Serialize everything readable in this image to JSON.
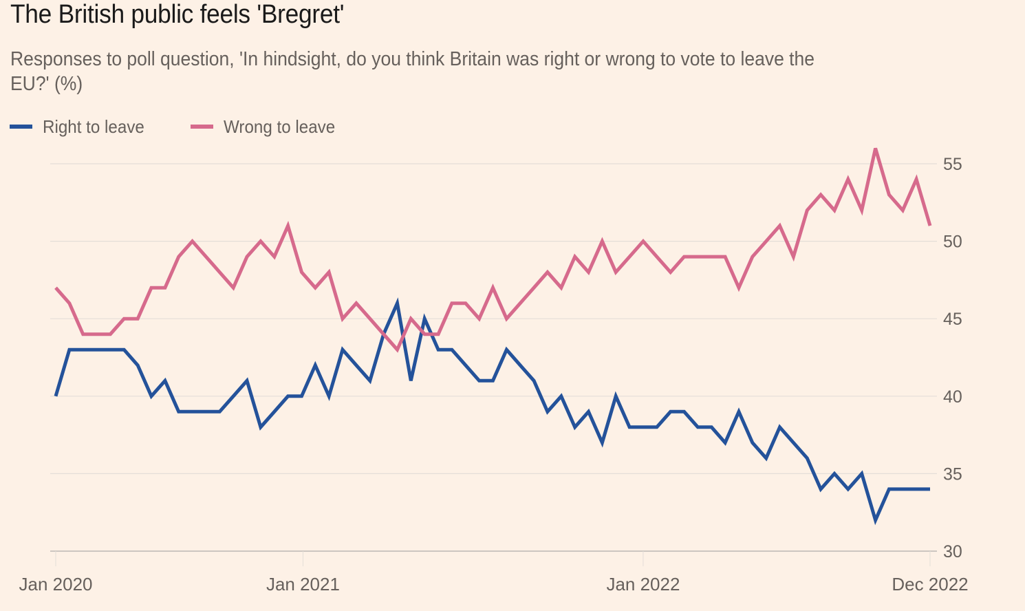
{
  "colors": {
    "background": "#FDF1E6",
    "right_to_leave": "#24529A",
    "wrong_to_leave": "#D66A8C",
    "grid": "#E4DED8",
    "axis": "#CCC6C0",
    "text_muted": "#66605C"
  },
  "chart_data": {
    "type": "line",
    "title": "The British public feels 'Bregret'",
    "subtitle": "Responses to poll question, 'In hindsight, do you think Britain was right or wrong to vote to leave the EU?' (%)",
    "xlabel": "",
    "ylabel": "",
    "ylim": [
      30,
      56
    ],
    "yticks": [
      30,
      35,
      40,
      45,
      50,
      55
    ],
    "ytick_labels": [
      "30",
      "35",
      "40",
      "45",
      "50",
      "55"
    ],
    "y_axis_side": "right",
    "grid": true,
    "legend_position": "top-left",
    "x_points": 65,
    "x_range": [
      "Jan 2020",
      "Dec 2022"
    ],
    "xticks": [
      {
        "label": "Jan 2020",
        "index": 0
      },
      {
        "label": "Jan 2021",
        "index": 18.1
      },
      {
        "label": "Jan 2022",
        "index": 43
      },
      {
        "label": "Dec 2022",
        "index": 64
      }
    ],
    "series": [
      {
        "name": "Right to leave",
        "color": "#24529A",
        "values": [
          40,
          43,
          43,
          43,
          43,
          43,
          42,
          40,
          41,
          39,
          39,
          39,
          39,
          40,
          41,
          38,
          39,
          40,
          40,
          42,
          40,
          43,
          42,
          41,
          44,
          46,
          41,
          45,
          43,
          43,
          42,
          41,
          41,
          43,
          42,
          41,
          39,
          40,
          38,
          39,
          37,
          40,
          38,
          38,
          38,
          39,
          39,
          38,
          38,
          37,
          39,
          37,
          36,
          38,
          37,
          36,
          34,
          35,
          34,
          35,
          32,
          34,
          34,
          34,
          34
        ]
      },
      {
        "name": "Wrong to leave",
        "color": "#D66A8C",
        "values": [
          47,
          46,
          44,
          44,
          44,
          45,
          45,
          47,
          47,
          49,
          50,
          49,
          48,
          47,
          49,
          50,
          49,
          51,
          48,
          47,
          48,
          45,
          46,
          45,
          44,
          43,
          45,
          44,
          44,
          46,
          46,
          45,
          47,
          45,
          46,
          47,
          48,
          47,
          49,
          48,
          50,
          48,
          49,
          50,
          49,
          48,
          49,
          49,
          49,
          49,
          47,
          49,
          50,
          51,
          49,
          52,
          53,
          52,
          54,
          52,
          56,
          53,
          52,
          54,
          51
        ]
      }
    ]
  }
}
